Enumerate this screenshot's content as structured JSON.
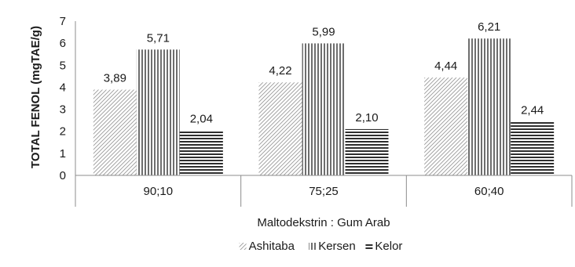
{
  "chart_data": {
    "type": "bar",
    "title": "",
    "xlabel": "Maltodekstrin : Gum Arab",
    "ylabel": "TOTAL FENOL (mgTAE/g)",
    "ylim": [
      0,
      7
    ],
    "yticks": [
      0,
      1,
      2,
      3,
      4,
      5,
      6,
      7
    ],
    "categories": [
      "90;10",
      "75;25",
      "60;40"
    ],
    "series": [
      {
        "name": "Ashitaba",
        "values": [
          3.89,
          4.22,
          4.44
        ],
        "labels": [
          "3,89",
          "4,22",
          "4,44"
        ],
        "pattern": "diagonal-hatch",
        "color": "#9a9a9a"
      },
      {
        "name": "Kersen",
        "values": [
          5.71,
          5.99,
          6.21
        ],
        "labels": [
          "5,71",
          "5,99",
          "6,21"
        ],
        "pattern": "vertical-lines",
        "color": "#6e6e6e"
      },
      {
        "name": "Kelor",
        "values": [
          2.04,
          2.1,
          2.44
        ],
        "labels": [
          "2,04",
          "2,10",
          "2,44"
        ],
        "pattern": "horizontal-lines",
        "color": "#3a3a3a"
      }
    ],
    "legend_position": "bottom",
    "grid": false
  }
}
